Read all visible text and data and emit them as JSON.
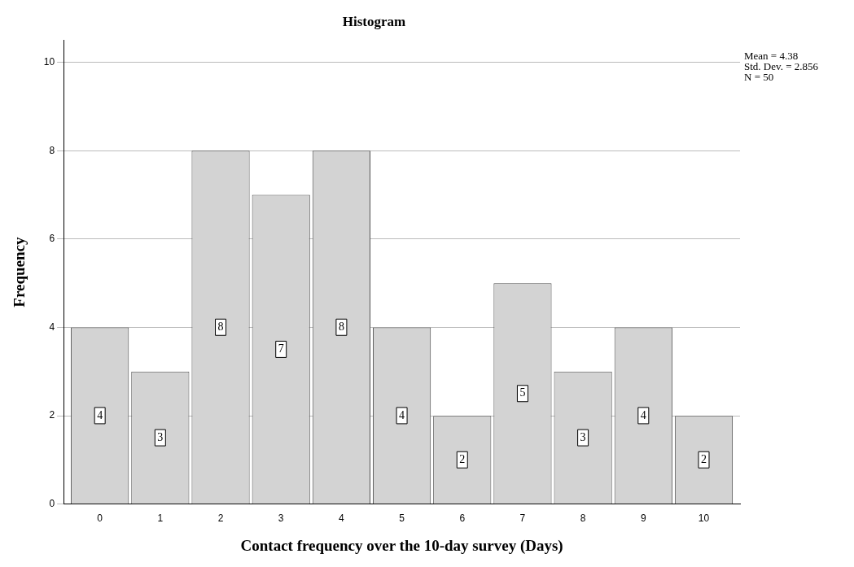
{
  "chart_data": {
    "type": "histogram",
    "title": "Histogram",
    "xlabel": "Contact frequency over the 10-day survey (Days)",
    "ylabel": "Frequency",
    "bins": [
      -0.5,
      0.5,
      1.5,
      2.5,
      3.5,
      4.5,
      5.5,
      6.5,
      7.5,
      8.5,
      9.5,
      10.5
    ],
    "values": [
      4,
      3,
      8,
      7,
      8,
      4,
      2,
      5,
      3,
      4,
      2
    ],
    "color": "#d3d3d3",
    "xlim": [
      -0.6,
      10.6
    ],
    "xticks": [
      0,
      1,
      2,
      3,
      4,
      5,
      6,
      7,
      8,
      9,
      10
    ],
    "ylim": [
      0,
      10.5
    ],
    "yticks": [
      0,
      2,
      4,
      6,
      8,
      10
    ],
    "grid": "y",
    "data_labels": true,
    "annotations": [
      "Mean = 4.38",
      "Std. Dev. = 2.856",
      "N = 50"
    ]
  }
}
